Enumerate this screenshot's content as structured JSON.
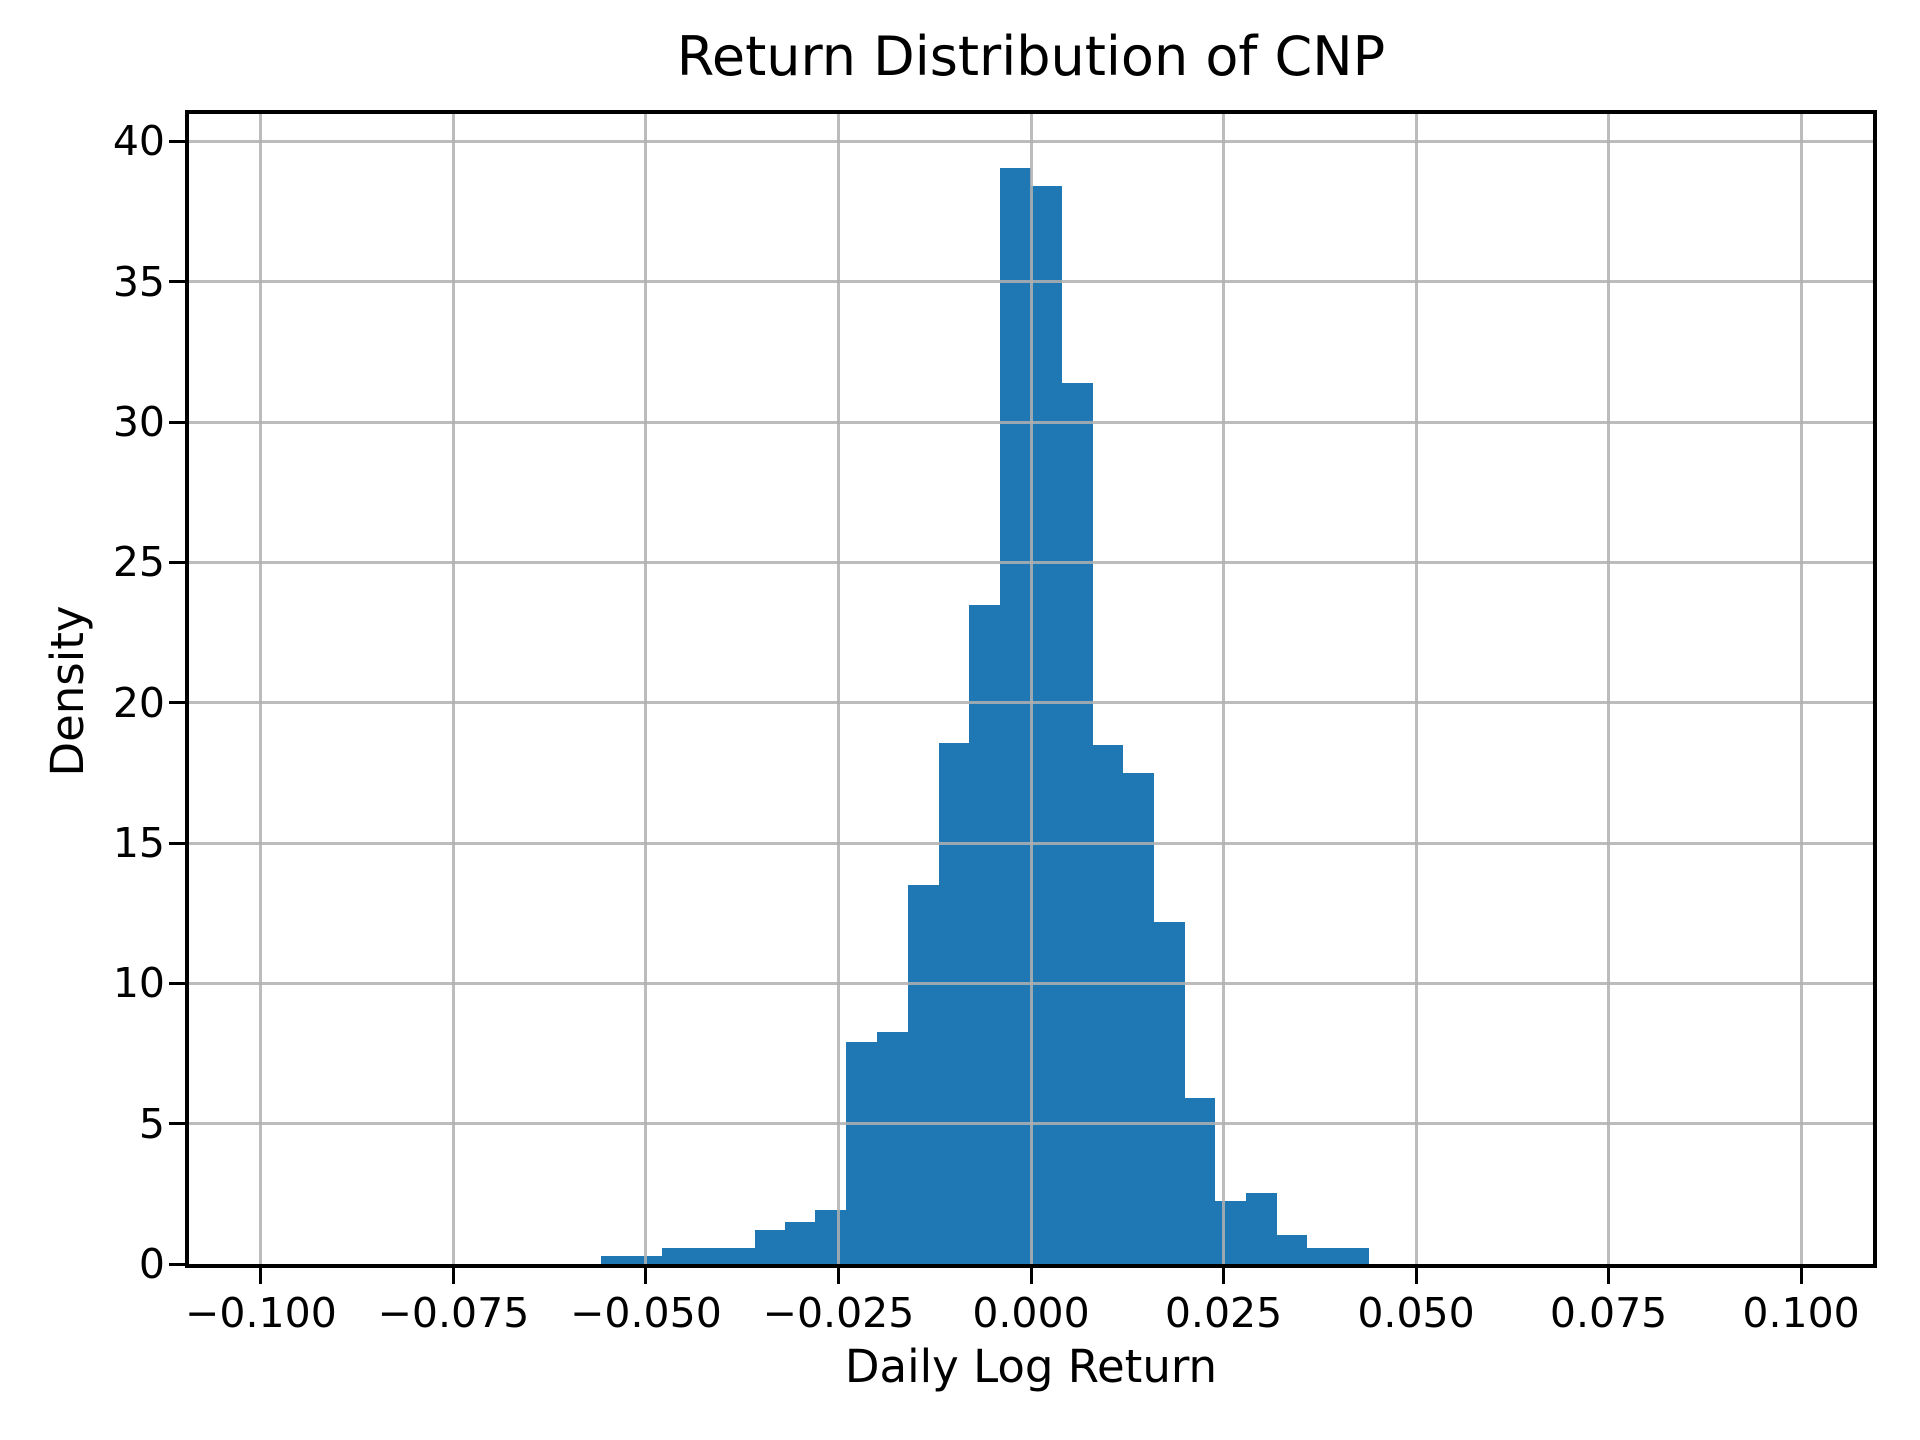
{
  "chart_data": {
    "type": "bar",
    "subtype": "histogram",
    "title": "Return Distribution of CNP",
    "xlabel": "Daily Log Return",
    "ylabel": "Density",
    "bar_color": "#1f77b4",
    "grid_color": "#b0b0b0",
    "grid": true,
    "legend": "none",
    "xlim": [
      -0.1096,
      0.1096
    ],
    "ylim": [
      0,
      41.05
    ],
    "bin_edges": [
      -0.0559,
      -0.0519,
      -0.0479,
      -0.0439,
      -0.0399,
      -0.0359,
      -0.0319,
      -0.028,
      -0.024,
      -0.02,
      -0.016,
      -0.012,
      -0.008,
      -0.004,
      0.0,
      0.004,
      0.008,
      0.012,
      0.016,
      0.02,
      0.0239,
      0.0279,
      0.0319,
      0.0359,
      0.0399,
      0.0439
    ],
    "densities": [
      0.28,
      0.28,
      0.57,
      0.57,
      0.57,
      1.2,
      1.5,
      1.92,
      7.9,
      8.25,
      13.5,
      18.55,
      23.5,
      39.05,
      38.4,
      31.4,
      18.5,
      17.5,
      12.2,
      5.9,
      2.26,
      2.52,
      1.05,
      0.56,
      0.56
    ],
    "x_tick_values": [
      -0.1,
      -0.075,
      -0.05,
      -0.025,
      0.0,
      0.025,
      0.05,
      0.075,
      0.1
    ],
    "x_tick_labels": [
      "−0.100",
      "−0.075",
      "−0.050",
      "−0.025",
      "0.000",
      "0.025",
      "0.050",
      "0.075",
      "0.100"
    ],
    "y_tick_values": [
      0,
      5,
      10,
      15,
      20,
      25,
      30,
      35,
      40
    ],
    "y_tick_labels": [
      "0",
      "5",
      "10",
      "15",
      "20",
      "25",
      "30",
      "35",
      "40"
    ]
  }
}
